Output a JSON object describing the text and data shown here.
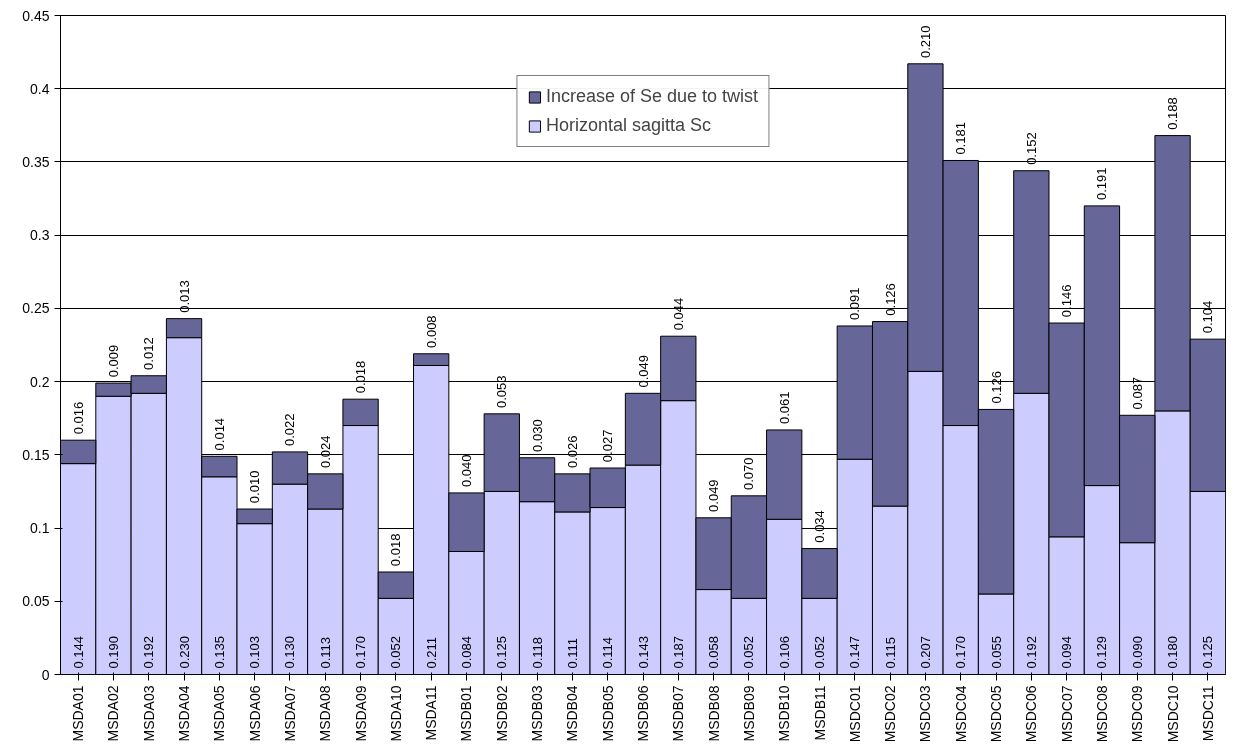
{
  "chart_data": {
    "type": "bar",
    "stacked": true,
    "grid": "y",
    "legend": "top",
    "ylim": [
      0,
      0.45
    ],
    "yticks": [
      0,
      {
        "value": 0.05,
        "label": "0.05"
      },
      {
        "value": 0.1,
        "label": "0.1"
      },
      {
        "value": 0.15,
        "label": "0.15"
      },
      {
        "value": 0.2,
        "label": "0.2"
      },
      {
        "value": 0.25,
        "label": "0.25"
      },
      {
        "value": 0.3,
        "label": "0.3"
      },
      {
        "value": 0.35,
        "label": "0.35"
      },
      {
        "value": 0.4,
        "label": "0.4"
      },
      {
        "value": 0.45,
        "label": "0.45"
      }
    ],
    "categories": [
      "MSDA01",
      "MSDA02",
      "MSDA03",
      "MSDA04",
      "MSDA05",
      "MSDA06",
      "MSDA07",
      "MSDA08",
      "MSDA09",
      "MSDA10",
      "MSDA11",
      "MSDB01",
      "MSDB02",
      "MSDB03",
      "MSDB04",
      "MSDB05",
      "MSDB06",
      "MSDB07",
      "MSDB08",
      "MSDB09",
      "MSDB10",
      "MSDB11",
      "MSDC01",
      "MSDC02",
      "MSDC03",
      "MSDC04",
      "MSDC05",
      "MSDC06",
      "MSDC07",
      "MSDC08",
      "MSDC09",
      "MSDC10",
      "MSDC11"
    ],
    "series": [
      {
        "name": "Horizontal sagitta Sc",
        "color": "#ccccff",
        "values": [
          0.144,
          0.19,
          0.192,
          0.23,
          0.135,
          0.103,
          0.13,
          0.113,
          0.17,
          0.052,
          0.211,
          0.084,
          0.125,
          0.118,
          0.111,
          0.114,
          0.143,
          0.187,
          0.058,
          0.052,
          0.106,
          0.052,
          0.147,
          0.115,
          0.207,
          0.17,
          0.055,
          0.192,
          0.094,
          0.129,
          0.09,
          0.18,
          0.125
        ],
        "value_labels": [
          "0.144",
          "0.190",
          "0.192",
          "0.230",
          "0.135",
          "0.103",
          "0.130",
          "0.113",
          "0.170",
          "0.052",
          "0.211",
          "0.084",
          "0.125",
          "0.118",
          "0.111",
          "0.114",
          "0.143",
          "0.187",
          "0.058",
          "0.052",
          "0.106",
          "0.052",
          "0.147",
          "0.115",
          "0.207",
          "0.170",
          "0.055",
          "0.192",
          "0.094",
          "0.129",
          "0.090",
          "0.180",
          "0.125"
        ]
      },
      {
        "name": "Increase of Se due to twist",
        "color": "#666699",
        "values": [
          0.016,
          0.009,
          0.012,
          0.013,
          0.014,
          0.01,
          0.022,
          0.024,
          0.018,
          0.018,
          0.008,
          0.04,
          0.053,
          0.03,
          0.026,
          0.027,
          0.049,
          0.044,
          0.049,
          0.07,
          0.061,
          0.034,
          0.091,
          0.126,
          0.21,
          0.181,
          0.126,
          0.152,
          0.146,
          0.191,
          0.087,
          0.188,
          0.104
        ],
        "value_labels": [
          "0.016",
          "0.009",
          "0.012",
          "0.013",
          "0.014",
          "0.010",
          "0.022",
          "0.024",
          "0.018",
          "0.018",
          "0.008",
          "0.040",
          "0.053",
          "0.030",
          "0.026",
          "0.027",
          "0.049",
          "0.044",
          "0.049",
          "0.070",
          "0.061",
          "0.034",
          "0.091",
          "0.126",
          "0.210",
          "0.181",
          "0.126",
          "0.152",
          "0.146",
          "0.191",
          "0.087",
          "0.188",
          "0.104"
        ]
      }
    ]
  }
}
